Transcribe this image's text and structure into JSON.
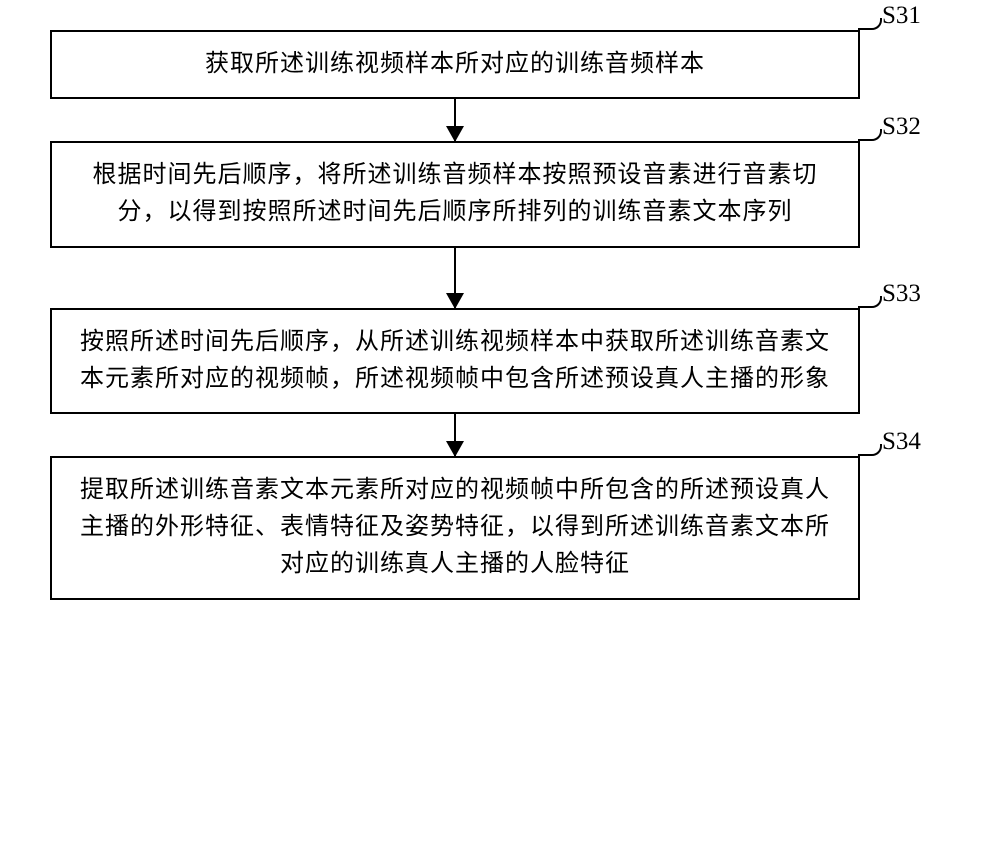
{
  "flowchart": {
    "type": "flowchart",
    "direction": "vertical",
    "background_color": "#ffffff",
    "box_border_color": "#000000",
    "box_border_width": 2,
    "text_color": "#000000",
    "font_family": "SimSun",
    "body_fontsize": 24,
    "label_fontsize": 25,
    "arrow_color": "#000000",
    "arrow_head_size": 16,
    "steps": [
      {
        "id": "S31",
        "label": "S31",
        "text": "获取所述训练视频样本所对应的训练音频样本",
        "arrow_after": "short"
      },
      {
        "id": "S32",
        "label": "S32",
        "text": "根据时间先后顺序，将所述训练音频样本按照预设音素进行音素切分，以得到按照所述时间先后顺序所排列的训练音素文本序列",
        "arrow_after": "long"
      },
      {
        "id": "S33",
        "label": "S33",
        "text": "按照所述时间先后顺序，从所述训练视频样本中获取所述训练音素文本元素所对应的视频帧，所述视频帧中包含所述预设真人主播的形象",
        "arrow_after": "short"
      },
      {
        "id": "S34",
        "label": "S34",
        "text": "提取所述训练音素文本元素所对应的视频帧中所包含的所述预设真人主播的外形特征、表情特征及姿势特征，以得到所述训练音素文本所对应的训练真人主播的人脸特征",
        "arrow_after": null
      }
    ]
  }
}
